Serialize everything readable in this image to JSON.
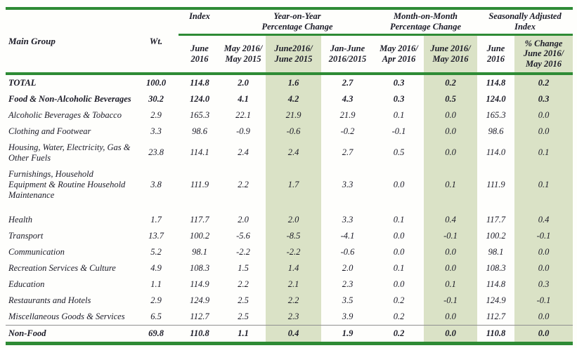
{
  "colors": {
    "rule_green": "#2e8b35",
    "shade_green": "#dae2c6",
    "separator_gray": "#8f8f8f",
    "text": "#1a1a26"
  },
  "table": {
    "header": {
      "main_group": "Main Group",
      "wt": "Wt.",
      "groups": [
        {
          "label": "Index"
        },
        {
          "label": "Year-on-Year\nPercentage Change"
        },
        {
          "label": "Month-on-Month\nPercentage Change"
        },
        {
          "label": "Seasonally Adjusted\nIndex"
        }
      ],
      "subheaders": [
        "June\n2016",
        "May 2016/\nMay 2015",
        "June2016/\nJune 2015",
        "Jan-June\n2016/2015",
        "May 2016/\nApr 2016",
        "June 2016/\nMay 2016",
        "June\n2016",
        "% Change\nJune 2016/\nMay 2016"
      ]
    },
    "rows": [
      {
        "name": "TOTAL",
        "values": [
          "100.0",
          "114.8",
          "2.0",
          "1.6",
          "2.7",
          "0.3",
          "0.2",
          "114.8",
          "0.2"
        ],
        "bold": true
      },
      {
        "name": "Food & Non-Alcoholic Beverages",
        "values": [
          "30.2",
          "124.0",
          "4.1",
          "4.2",
          "4.3",
          "0.3",
          "0.5",
          "124.0",
          "0.3"
        ],
        "bold": true
      },
      {
        "name": "Alcoholic Beverages & Tobacco",
        "values": [
          "2.9",
          "165.3",
          "22.1",
          "21.9",
          "21.9",
          "0.1",
          "0.0",
          "165.3",
          "0.0"
        ]
      },
      {
        "name": "Clothing and Footwear",
        "values": [
          "3.3",
          "98.6",
          "-0.9",
          "-0.6",
          "-0.2",
          "-0.1",
          "0.0",
          "98.6",
          "0.0"
        ]
      },
      {
        "name": "Housing, Water, Electricity, Gas & Other Fuels",
        "values": [
          "23.8",
          "114.1",
          "2.4",
          "2.4",
          "2.7",
          "0.5",
          "0.0",
          "114.0",
          "0.1"
        ]
      },
      {
        "name": "Furnishings, Household Equipment  & Routine Household Maintenance",
        "values": [
          "3.8",
          "111.9",
          "2.2",
          "1.7",
          "3.3",
          "0.0",
          "0.1",
          "111.9",
          "0.1"
        ],
        "gap_below": true
      },
      {
        "name": "Health",
        "values": [
          "1.7",
          "117.7",
          "2.0",
          "2.0",
          "3.3",
          "0.1",
          "0.4",
          "117.7",
          "0.4"
        ]
      },
      {
        "name": "Transport",
        "values": [
          "13.7",
          "100.2",
          "-5.6",
          "-8.5",
          "-4.1",
          "0.0",
          "-0.1",
          "100.2",
          "-0.1"
        ]
      },
      {
        "name": "Communication",
        "values": [
          "5.2",
          "98.1",
          "-2.2",
          "-2.2",
          "-0.6",
          "0.0",
          "0.0",
          "98.1",
          "0.0"
        ]
      },
      {
        "name": "Recreation Services & Culture",
        "values": [
          "4.9",
          "108.3",
          "1.5",
          "1.4",
          "2.0",
          "0.1",
          "0.0",
          "108.3",
          "0.0"
        ]
      },
      {
        "name": "Education",
        "values": [
          "1.1",
          "114.9",
          "2.2",
          "2.1",
          "2.3",
          "0.0",
          "0.1",
          "114.8",
          "0.3"
        ]
      },
      {
        "name": "Restaurants and Hotels",
        "values": [
          "2.9",
          "124.9",
          "2.5",
          "2.2",
          "3.5",
          "0.2",
          "-0.1",
          "124.9",
          "-0.1"
        ]
      },
      {
        "name": "Miscellaneous Goods & Services",
        "values": [
          "6.5",
          "112.7",
          "2.5",
          "2.3",
          "3.9",
          "0.2",
          "0.0",
          "112.7",
          "0.0"
        ]
      },
      {
        "name": "Non-Food",
        "values": [
          "69.8",
          "110.8",
          "1.1",
          "0.4",
          "1.9",
          "0.2",
          "0.0",
          "110.8",
          "0.0"
        ],
        "bold": true,
        "separator_above": true
      }
    ]
  }
}
